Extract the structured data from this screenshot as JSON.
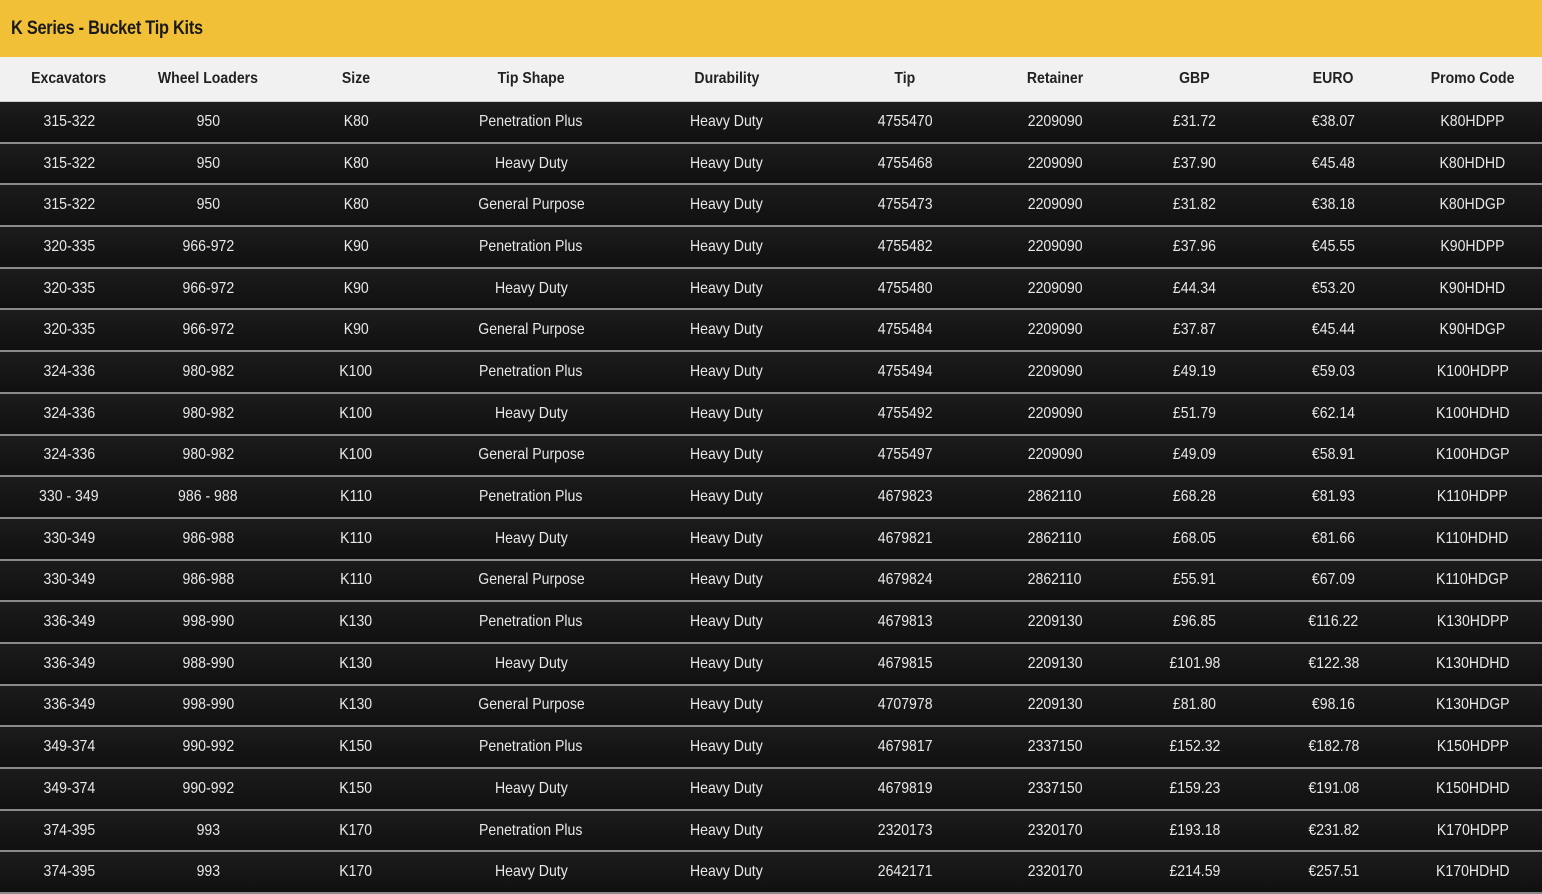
{
  "title": "K Series - Bucket Tip Kits",
  "colors": {
    "header_bar": "#F2C037",
    "column_header_bg": "#F1F1F1",
    "row_bg": "#141414",
    "row_text": "#E8E8E8"
  },
  "columns": [
    "Excavators",
    "Wheel Loaders",
    "Size",
    "Tip Shape",
    "Durability",
    "Tip",
    "Retainer",
    "GBP",
    "EURO",
    "Promo Code"
  ],
  "rows": [
    [
      "315-322",
      "950",
      "K80",
      "Penetration Plus",
      "Heavy Duty",
      "4755470",
      "2209090",
      "£31.72",
      "€38.07",
      "K80HDPP"
    ],
    [
      "315-322",
      "950",
      "K80",
      "Heavy Duty",
      "Heavy Duty",
      "4755468",
      "2209090",
      "£37.90",
      "€45.48",
      "K80HDHD"
    ],
    [
      "315-322",
      "950",
      "K80",
      "General Purpose",
      "Heavy Duty",
      "4755473",
      "2209090",
      "£31.82",
      "€38.18",
      "K80HDGP"
    ],
    [
      "320-335",
      "966-972",
      "K90",
      "Penetration Plus",
      "Heavy Duty",
      "4755482",
      "2209090",
      "£37.96",
      "€45.55",
      "K90HDPP"
    ],
    [
      "320-335",
      "966-972",
      "K90",
      "Heavy Duty",
      "Heavy Duty",
      "4755480",
      "2209090",
      "£44.34",
      "€53.20",
      "K90HDHD"
    ],
    [
      "320-335",
      "966-972",
      "K90",
      "General Purpose",
      "Heavy Duty",
      "4755484",
      "2209090",
      "£37.87",
      "€45.44",
      "K90HDGP"
    ],
    [
      "324-336",
      "980-982",
      "K100",
      "Penetration Plus",
      "Heavy Duty",
      "4755494",
      "2209090",
      "£49.19",
      "€59.03",
      "K100HDPP"
    ],
    [
      "324-336",
      "980-982",
      "K100",
      "Heavy Duty",
      "Heavy Duty",
      "4755492",
      "2209090",
      "£51.79",
      "€62.14",
      "K100HDHD"
    ],
    [
      "324-336",
      "980-982",
      "K100",
      "General Purpose",
      "Heavy Duty",
      "4755497",
      "2209090",
      "£49.09",
      "€58.91",
      "K100HDGP"
    ],
    [
      "330 - 349",
      "986 - 988",
      "K110",
      "Penetration Plus",
      "Heavy Duty",
      "4679823",
      "2862110",
      "£68.28",
      "€81.93",
      "K110HDPP"
    ],
    [
      "330-349",
      "986-988",
      "K110",
      "Heavy Duty",
      "Heavy Duty",
      "4679821",
      "2862110",
      "£68.05",
      "€81.66",
      "K110HDHD"
    ],
    [
      "330-349",
      "986-988",
      "K110",
      "General Purpose",
      "Heavy Duty",
      "4679824",
      "2862110",
      "£55.91",
      "€67.09",
      "K110HDGP"
    ],
    [
      "336-349",
      "998-990",
      "K130",
      "Penetration Plus",
      "Heavy Duty",
      "4679813",
      "2209130",
      "£96.85",
      "€116.22",
      "K130HDPP"
    ],
    [
      "336-349",
      "988-990",
      "K130",
      "Heavy Duty",
      "Heavy Duty",
      "4679815",
      "2209130",
      "£101.98",
      "€122.38",
      "K130HDHD"
    ],
    [
      "336-349",
      "998-990",
      "K130",
      "General Purpose",
      "Heavy Duty",
      "4707978",
      "2209130",
      "£81.80",
      "€98.16",
      "K130HDGP"
    ],
    [
      "349-374",
      "990-992",
      "K150",
      "Penetration Plus",
      "Heavy Duty",
      "4679817",
      "2337150",
      "£152.32",
      "€182.78",
      "K150HDPP"
    ],
    [
      "349-374",
      "990-992",
      "K150",
      "Heavy Duty",
      "Heavy Duty",
      "4679819",
      "2337150",
      "£159.23",
      "€191.08",
      "K150HDHD"
    ],
    [
      "374-395",
      "993",
      "K170",
      "Penetration Plus",
      "Heavy Duty",
      "2320173",
      "2320170",
      "£193.18",
      "€231.82",
      "K170HDPP"
    ],
    [
      "374-395",
      "993",
      "K170",
      "Heavy Duty",
      "Heavy Duty",
      "2642171",
      "2320170",
      "£214.59",
      "€257.51",
      "K170HDHD"
    ]
  ]
}
